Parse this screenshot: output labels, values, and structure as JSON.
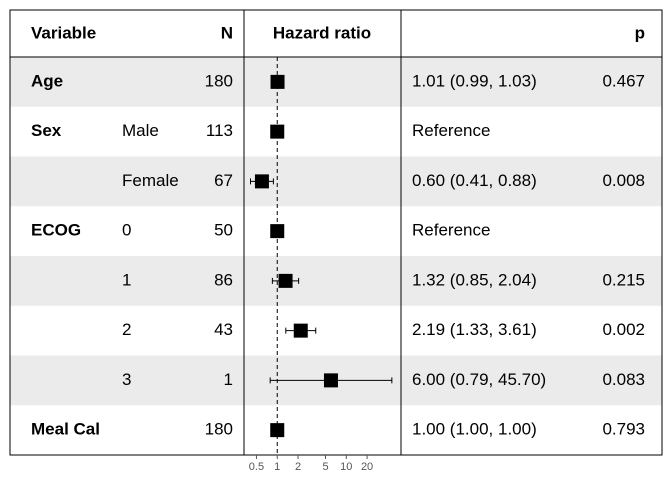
{
  "chart_data": {
    "type": "forest",
    "columns": {
      "variable": "Variable",
      "n": "N",
      "estimate": "Hazard ratio",
      "p": "p"
    },
    "rows": [
      {
        "variable": "Age",
        "n": 180,
        "hr": 1.01,
        "lower": 0.99,
        "upper": 1.03,
        "label": "1.01 (0.99, 1.03)",
        "p": 0.467
      },
      {
        "variable": "Sex",
        "level": "Male",
        "n": 113,
        "hr": 1,
        "label": "Reference"
      },
      {
        "level": "Female",
        "n": 67,
        "hr": 0.6,
        "lower": 0.41,
        "upper": 0.88,
        "label": "0.60 (0.41, 0.88)",
        "p": 0.008
      },
      {
        "variable": "ECOG",
        "level": "0",
        "n": 50,
        "hr": 1,
        "label": "Reference"
      },
      {
        "level": "1",
        "n": 86,
        "hr": 1.32,
        "lower": 0.85,
        "upper": 2.04,
        "label": "1.32 (0.85, 2.04)",
        "p": 0.215
      },
      {
        "level": "2",
        "n": 43,
        "hr": 2.19,
        "lower": 1.33,
        "upper": 3.61,
        "label": "2.19 (1.33, 3.61)",
        "p": 0.002
      },
      {
        "level": "3",
        "n": 1,
        "hr": 6,
        "lower": 0.79,
        "upper": 45.7,
        "label": "6.00 (0.79, 45.70)",
        "p": 0.083
      },
      {
        "variable": "Meal Cal",
        "n": 180,
        "hr": 1,
        "lower": 1,
        "upper": 1,
        "label": "1.00 (1.00, 1.00)",
        "p": 0.793
      }
    ],
    "xlim": [
      0.33,
      62
    ],
    "xticks": [
      0.5,
      1,
      2,
      5,
      10,
      20
    ],
    "log_x": true,
    "reference_line": 1,
    "stripe_color": "#ebebeb",
    "color": "#000000"
  }
}
